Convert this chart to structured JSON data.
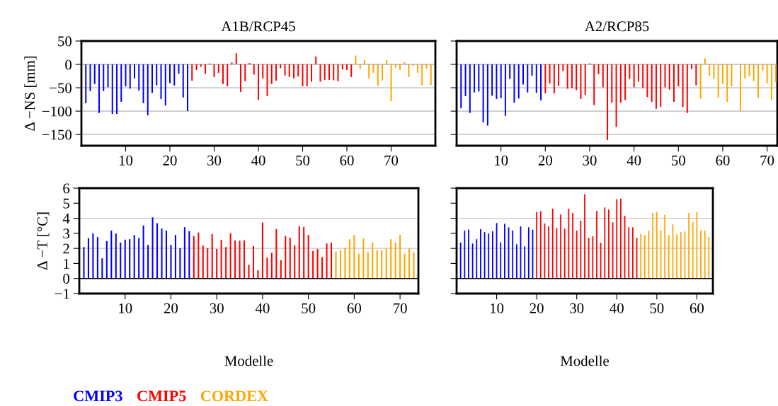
{
  "chart_data": [
    {
      "type": "bar",
      "title": "A1B/RCP45",
      "ylabel": "Δ −NS [mm]",
      "xlim": [
        0,
        80
      ],
      "ylim": [
        -174,
        50
      ],
      "xticks": [
        10,
        20,
        30,
        40,
        50,
        60,
        70
      ],
      "yticks": [
        -150,
        -100,
        -50,
        0,
        50
      ],
      "grid": "y",
      "series": [
        {
          "color": "#0000ff",
          "x": [
            1,
            2,
            3,
            4,
            5,
            6,
            7,
            8,
            9,
            10,
            11,
            12,
            13,
            14,
            15,
            16,
            17,
            18,
            19,
            20,
            21,
            22,
            23,
            24
          ],
          "values": [
            -83,
            -57,
            -42,
            -104,
            -57,
            -49,
            -106,
            -106,
            -80,
            -47,
            -52,
            -30,
            -56,
            -83,
            -109,
            -61,
            -45,
            -74,
            -88,
            -40,
            -45,
            -20,
            -71,
            -100
          ]
        },
        {
          "color": "#ff0000",
          "x": [
            25,
            26,
            27,
            28,
            29,
            30,
            31,
            32,
            33,
            34,
            35,
            36,
            37,
            38,
            39,
            40,
            41,
            42,
            43,
            44,
            45,
            46,
            47,
            48,
            49,
            50,
            51,
            52,
            53,
            54,
            55,
            56,
            57,
            58,
            59,
            60,
            61
          ],
          "values": [
            -35,
            -12,
            -5,
            -20,
            2,
            -27,
            -18,
            -42,
            -47,
            4,
            24,
            -59,
            -36,
            3,
            -22,
            -76,
            -30,
            -68,
            -42,
            -35,
            -8,
            -24,
            -27,
            -30,
            -26,
            -47,
            -47,
            -37,
            17,
            -37,
            -33,
            -33,
            -34,
            -36,
            -11,
            -12,
            -27
          ]
        },
        {
          "color": "#ffa500",
          "x": [
            62,
            63,
            64,
            65,
            66,
            67,
            68,
            69,
            70,
            71,
            72,
            73,
            74,
            75,
            76,
            77,
            78,
            79
          ],
          "values": [
            19,
            -10,
            9,
            -30,
            -18,
            -46,
            -34,
            9,
            -79,
            -7,
            -12,
            5,
            -27,
            -3,
            -18,
            -45,
            -9,
            -44
          ]
        }
      ]
    },
    {
      "type": "bar",
      "title": "A2/RCP85",
      "xlim": [
        0,
        72.3
      ],
      "ylim": [
        -174,
        50
      ],
      "xticks": [
        10,
        20,
        30,
        40,
        50,
        60,
        70
      ],
      "yticks": [
        -150,
        -100,
        -50,
        0,
        50
      ],
      "grid": "y",
      "tick_labels": "x",
      "series": [
        {
          "color": "#0000ff",
          "x": [
            1,
            2,
            3,
            4,
            5,
            6,
            7,
            8,
            9,
            10,
            11,
            12,
            13,
            14,
            15,
            16,
            17,
            18,
            19
          ],
          "values": [
            -94,
            -68,
            -104,
            -60,
            -58,
            -124,
            -131,
            -67,
            -74,
            -72,
            -110,
            -31,
            -82,
            -73,
            -43,
            -60,
            -24,
            -61,
            -77
          ]
        },
        {
          "color": "#ff0000",
          "x": [
            20,
            21,
            22,
            23,
            24,
            25,
            26,
            27,
            28,
            29,
            30,
            31,
            32,
            33,
            34,
            35,
            36,
            37,
            38,
            39,
            40,
            41,
            42,
            43,
            44,
            45,
            46,
            47,
            48,
            49,
            50,
            51,
            52,
            53,
            54
          ],
          "values": [
            -62,
            -41,
            -62,
            -46,
            -14,
            -52,
            -51,
            -55,
            -74,
            -65,
            2,
            -87,
            -21,
            -49,
            -162,
            -82,
            -134,
            -82,
            -76,
            -31,
            -49,
            -37,
            -51,
            -70,
            -80,
            -95,
            -91,
            -49,
            -54,
            -80,
            -47,
            -91,
            -104,
            -10,
            -45
          ]
        },
        {
          "color": "#ffa500",
          "x": [
            55,
            56,
            57,
            58,
            59,
            60,
            61,
            62,
            63,
            64,
            65,
            66,
            67,
            68,
            69,
            70,
            71,
            72
          ],
          "values": [
            -74,
            13,
            -25,
            -31,
            -71,
            -42,
            -80,
            -47,
            0,
            -100,
            -30,
            -25,
            -36,
            -72,
            -13,
            -41,
            -77,
            -38
          ]
        }
      ]
    },
    {
      "type": "bar",
      "ylabel": "Δ −T [°C]",
      "xlabel": "Modelle",
      "xlim": [
        0,
        74
      ],
      "ylim": [
        -1,
        6
      ],
      "xticks": [
        10,
        20,
        30,
        40,
        50,
        60,
        70
      ],
      "yticks": [
        -1,
        0,
        1,
        2,
        3,
        4,
        5,
        6
      ],
      "legend": "bottom",
      "ref_lines": [
        {
          "axis": "y",
          "value": 0,
          "color": "#000000"
        },
        {
          "axis": "y",
          "value": 2,
          "color": "#c8c8c8"
        },
        {
          "axis": "y",
          "value": 4,
          "color": "#c8c8c8"
        }
      ],
      "series": [
        {
          "name": "CMIP3",
          "color": "#0000ff",
          "x": [
            1,
            2,
            3,
            4,
            5,
            6,
            7,
            8,
            9,
            10,
            11,
            12,
            13,
            14,
            15,
            16,
            17,
            18,
            19,
            20,
            21,
            22,
            23,
            24
          ],
          "values": [
            2.09,
            2.68,
            2.99,
            2.76,
            1.34,
            2.48,
            3.18,
            2.99,
            2.38,
            2.58,
            2.61,
            2.89,
            2.68,
            3.52,
            2.23,
            4.06,
            3.67,
            3.31,
            3.18,
            2.23,
            2.89,
            2.01,
            3.41,
            3.15
          ]
        },
        {
          "name": "CMIP5",
          "color": "#ff0000",
          "x": [
            25,
            26,
            27,
            28,
            29,
            30,
            31,
            32,
            33,
            34,
            35,
            36,
            37,
            38,
            39,
            40,
            41,
            42,
            43,
            44,
            45,
            46,
            47,
            48,
            49,
            50,
            51,
            52,
            53,
            54,
            55
          ],
          "values": [
            2.81,
            3.05,
            2.19,
            2.01,
            2.95,
            1.96,
            2.56,
            2.09,
            3.0,
            2.53,
            2.51,
            2.53,
            0.91,
            2.15,
            0.54,
            3.72,
            1.39,
            1.7,
            3.28,
            1.21,
            2.81,
            2.71,
            2.2,
            3.47,
            3.43,
            2.89,
            1.83,
            1.96,
            1.42,
            2.33,
            2.37
          ]
        },
        {
          "name": "CORDEX",
          "color": "#ffa500",
          "x": [
            56,
            57,
            58,
            59,
            60,
            61,
            62,
            63,
            64,
            65,
            66,
            67,
            68,
            69,
            70,
            71,
            72,
            73
          ],
          "values": [
            1.79,
            1.86,
            2.04,
            2.61,
            2.9,
            1.65,
            2.66,
            1.75,
            2.38,
            1.88,
            1.88,
            1.99,
            2.61,
            2.38,
            2.9,
            1.65,
            2.01,
            1.73
          ]
        }
      ]
    },
    {
      "type": "bar",
      "xlabel": "Modelle",
      "xlim": [
        0,
        64
      ],
      "ylim": [
        -1,
        6
      ],
      "xticks": [
        10,
        20,
        30,
        40,
        50,
        60
      ],
      "yticks": [
        -1,
        0,
        1,
        2,
        3,
        4,
        5,
        6
      ],
      "tick_labels": "x",
      "ref_lines": [
        {
          "axis": "y",
          "value": 0,
          "color": "#000000"
        },
        {
          "axis": "y",
          "value": 2,
          "color": "#c8c8c8"
        },
        {
          "axis": "y",
          "value": 4,
          "color": "#c8c8c8"
        }
      ],
      "series": [
        {
          "color": "#0000ff",
          "x": [
            1,
            2,
            3,
            4,
            5,
            6,
            7,
            8,
            9,
            10,
            11,
            12,
            13,
            14,
            15,
            16,
            17,
            18,
            19
          ],
          "values": [
            2.39,
            3.18,
            3.25,
            2.32,
            2.61,
            3.27,
            3.08,
            2.99,
            3.13,
            3.68,
            2.4,
            3.63,
            3.4,
            3.18,
            2.27,
            3.46,
            2.13,
            3.4,
            3.24
          ]
        },
        {
          "color": "#ff0000",
          "x": [
            20,
            21,
            22,
            23,
            24,
            25,
            26,
            27,
            28,
            29,
            30,
            31,
            32,
            33,
            34,
            35,
            36,
            37,
            38,
            39,
            40,
            41,
            42,
            43,
            44,
            45
          ],
          "values": [
            4.42,
            4.47,
            3.65,
            3.46,
            4.64,
            3.35,
            4.25,
            3.3,
            4.64,
            4.36,
            3.18,
            3.84,
            5.59,
            2.7,
            2.8,
            4.5,
            2.37,
            4.72,
            4.58,
            3.73,
            5.26,
            5.31,
            4.17,
            3.4,
            3.4,
            2.7
          ]
        },
        {
          "color": "#ffa500",
          "x": [
            46,
            47,
            48,
            49,
            50,
            51,
            52,
            53,
            54,
            55,
            56,
            57,
            58,
            59,
            60,
            61,
            62,
            63
          ],
          "values": [
            2.97,
            2.89,
            3.18,
            4.36,
            4.41,
            3.22,
            4.23,
            2.89,
            3.59,
            2.94,
            3.08,
            3.13,
            4.36,
            3.74,
            4.41,
            3.21,
            3.18,
            2.75
          ]
        }
      ]
    }
  ]
}
